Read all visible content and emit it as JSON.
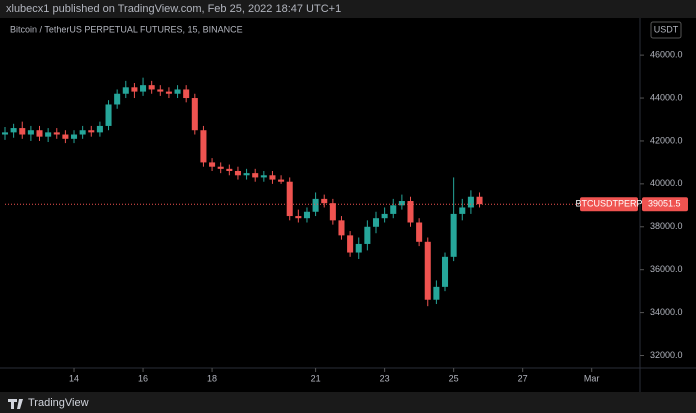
{
  "chart_data": {
    "type": "candlestick",
    "header": "xlubecx1 published on TradingView.com, Feb 25, 2022 18:47 UTC+1",
    "title": "Bitcoin / TetherUS PERPETUAL FUTURES, 15, BINANCE",
    "currency": "USDT",
    "symbol_label": "BTCUSDTPERP",
    "footer": "TradingView",
    "up_color": "#26a69a",
    "down_color": "#ef5350",
    "x": [
      12,
      12.25,
      12.5,
      12.75,
      13,
      13.25,
      13.5,
      13.75,
      14,
      14.25,
      14.5,
      14.75,
      15,
      15.25,
      15.5,
      15.75,
      16,
      16.25,
      16.5,
      16.75,
      17,
      17.25,
      17.5,
      17.75,
      18,
      18.25,
      18.5,
      18.75,
      19,
      19.25,
      19.5,
      19.75,
      20,
      20.25,
      20.5,
      20.75,
      21,
      21.25,
      21.5,
      21.75,
      22,
      22.25,
      22.5,
      22.75,
      23,
      23.25,
      23.5,
      23.75,
      24,
      24.25,
      24.5,
      24.75,
      25,
      25.25,
      25.5,
      25.75
    ],
    "open": [
      42300,
      42400,
      42600,
      42300,
      42500,
      42200,
      42400,
      42300,
      42100,
      42300,
      42500,
      42400,
      42700,
      43700,
      44200,
      44500,
      44300,
      44600,
      44400,
      44300,
      44200,
      44400,
      44000,
      42500,
      41000,
      40800,
      40700,
      40600,
      40400,
      40500,
      40300,
      40400,
      40200,
      40100,
      38500,
      38400,
      38700,
      39300,
      39100,
      38300,
      37600,
      36800,
      37200,
      38000,
      38400,
      38600,
      39000,
      39200,
      38200,
      37300,
      34600,
      35200,
      36600,
      38600,
      38900,
      39400
    ],
    "high": [
      42650,
      42800,
      42900,
      42700,
      42700,
      42600,
      42600,
      42500,
      42500,
      42700,
      42700,
      42900,
      43900,
      44400,
      44800,
      44700,
      44950,
      44800,
      44600,
      44500,
      44600,
      44600,
      44200,
      42700,
      41200,
      41000,
      40900,
      40800,
      40700,
      40700,
      40600,
      40600,
      40400,
      40300,
      38800,
      38900,
      39600,
      39500,
      39300,
      38500,
      37800,
      37500,
      38300,
      38700,
      38900,
      39300,
      39500,
      39400,
      38400,
      37500,
      35500,
      36800,
      40300,
      39300,
      39700,
      39600
    ],
    "low": [
      42050,
      42150,
      42100,
      42000,
      42000,
      41950,
      42100,
      41900,
      41900,
      42100,
      42200,
      42200,
      42500,
      43500,
      44000,
      44000,
      44100,
      44200,
      44100,
      44000,
      44000,
      43800,
      42300,
      40800,
      40600,
      40500,
      40400,
      40200,
      40200,
      40100,
      40100,
      40000,
      40000,
      38300,
      38200,
      38200,
      38500,
      38900,
      38100,
      37400,
      36600,
      36500,
      36900,
      37700,
      38200,
      38400,
      38800,
      38000,
      37100,
      34300,
      34400,
      35000,
      36400,
      38300,
      38600,
      38900
    ],
    "close": [
      42400,
      42600,
      42300,
      42500,
      42200,
      42400,
      42300,
      42100,
      42300,
      42500,
      42400,
      42700,
      43700,
      44200,
      44500,
      44300,
      44600,
      44400,
      44300,
      44200,
      44400,
      44000,
      42500,
      41000,
      40800,
      40700,
      40600,
      40400,
      40500,
      40300,
      40400,
      40200,
      40100,
      38500,
      38400,
      38700,
      39300,
      39100,
      38300,
      37600,
      36800,
      37200,
      38000,
      38400,
      38600,
      39000,
      39200,
      38200,
      37300,
      34600,
      35200,
      36600,
      38600,
      38900,
      39400,
      39051.5
    ],
    "xlim": [
      12,
      30.4
    ],
    "xticks": [
      14,
      16,
      18,
      21,
      23,
      25,
      27,
      {
        "value": 29,
        "label": "Mar"
      }
    ],
    "ylim": [
      30300,
      47730
    ],
    "yticks": [
      {
        "value": 32000,
        "label": "32000.0"
      },
      {
        "value": 34000,
        "label": "34000.0"
      },
      {
        "value": 36000,
        "label": "36000.0"
      },
      {
        "value": 38000,
        "label": "38000.0"
      },
      {
        "value": 40000,
        "label": "40000.0"
      },
      {
        "value": 42000,
        "label": "42000.0"
      },
      {
        "value": 44000,
        "label": "44000.0"
      },
      {
        "value": 46000,
        "label": "46000.0"
      }
    ]
  }
}
